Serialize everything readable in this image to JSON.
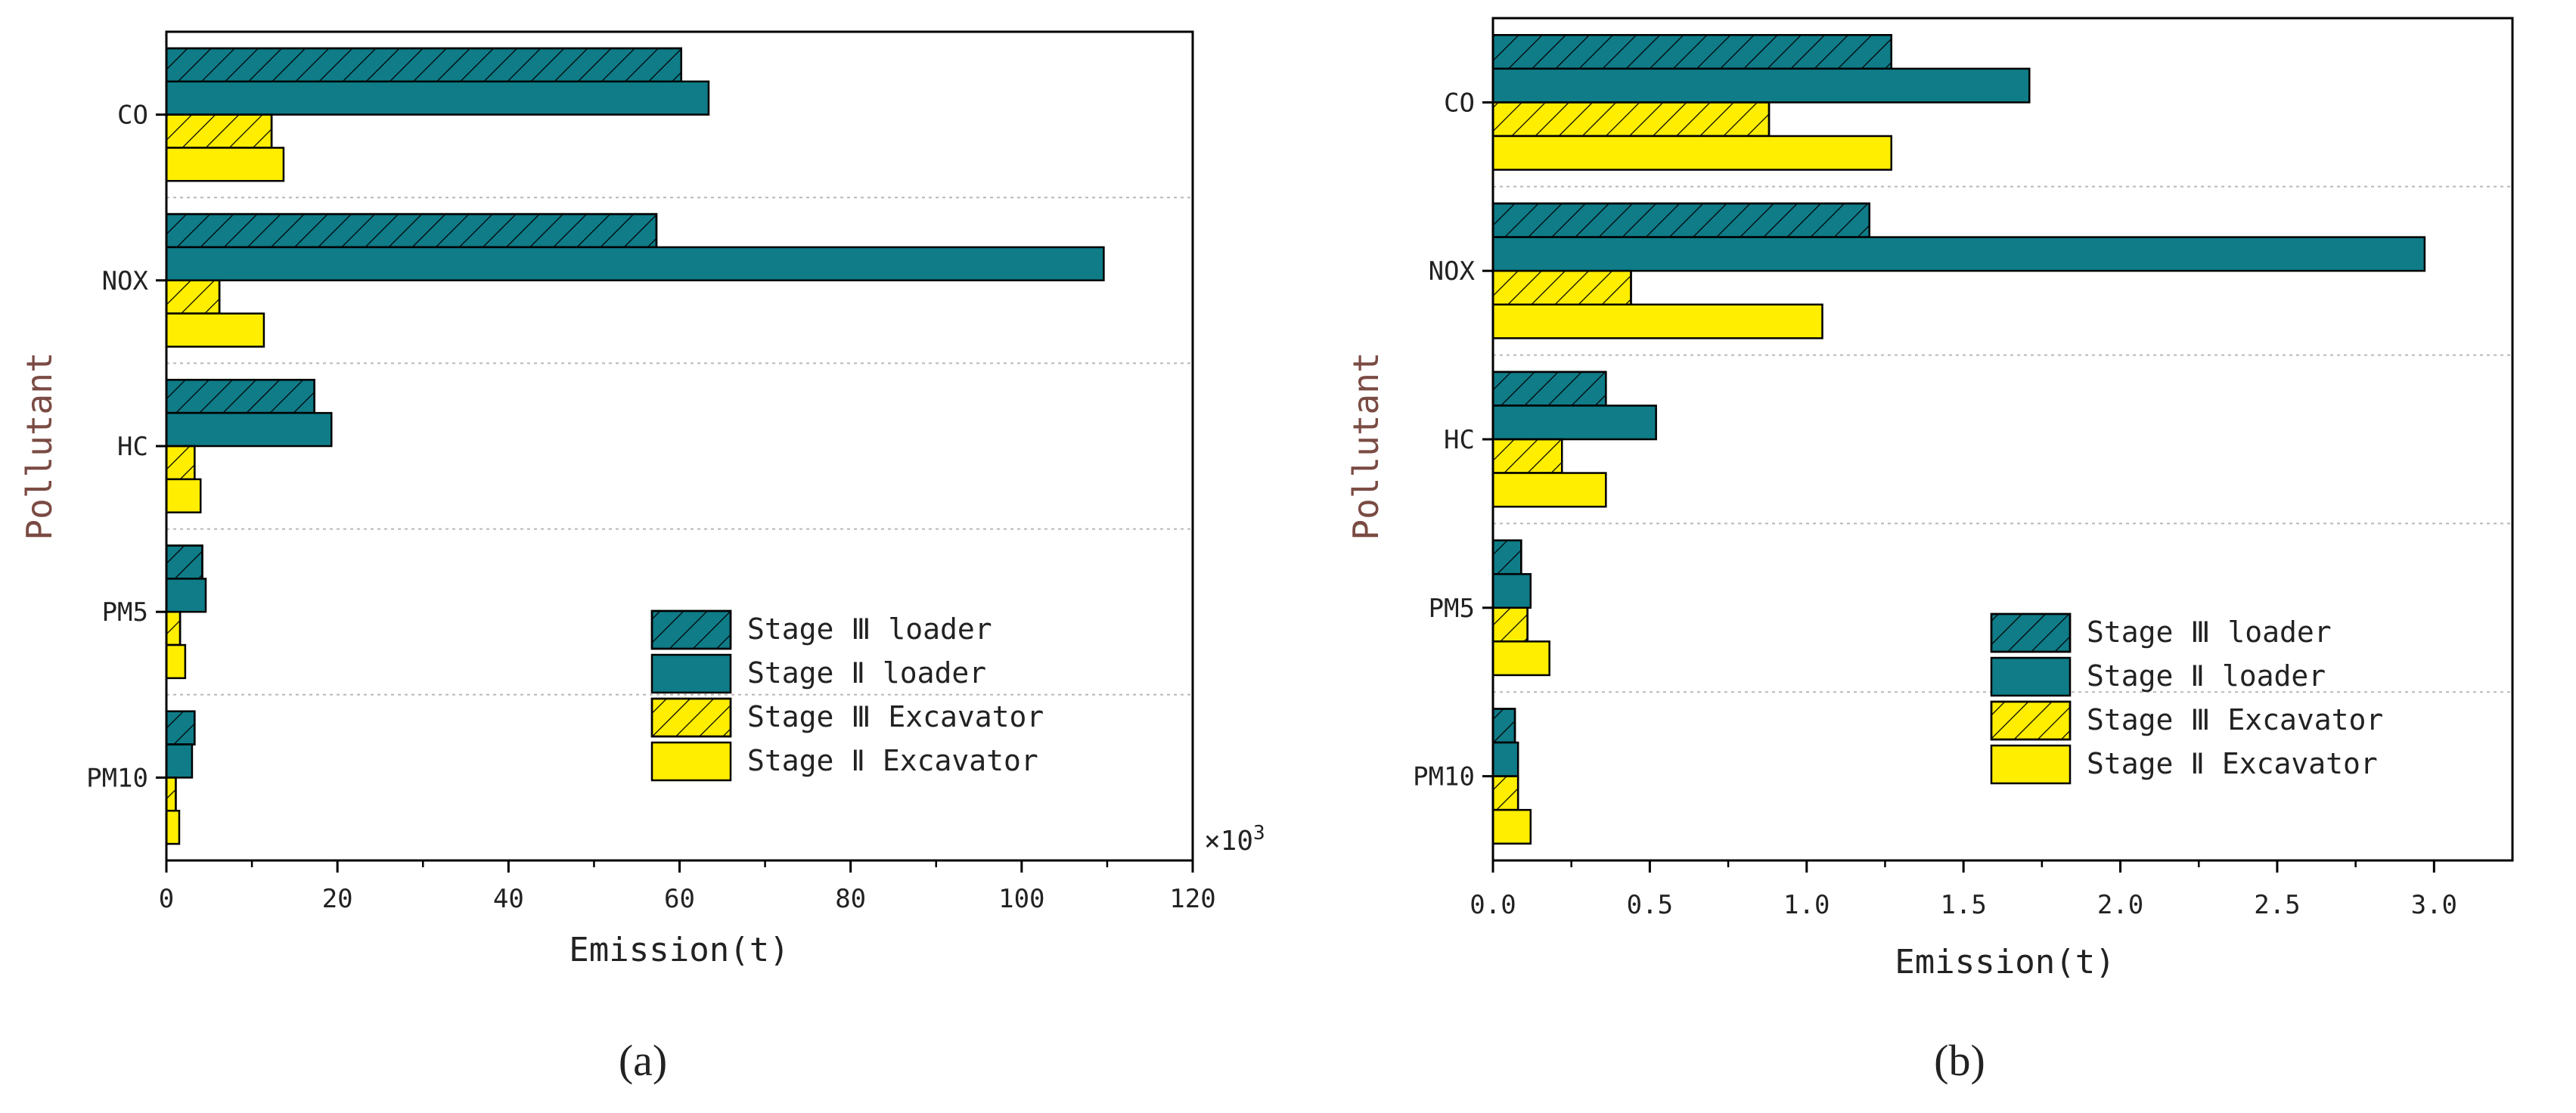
{
  "colors": {
    "teal": "#0f7c88",
    "yellow": "#ffee00",
    "grid": "#b8b8b8",
    "axis": "#000000",
    "ylabel": "#7a4b43"
  },
  "chart_data": [
    {
      "type": "bar",
      "orientation": "horizontal",
      "panel_label": "(a)",
      "xlabel": "Emission(t)",
      "ylabel": "Pollutant",
      "x_multiplier_label": "×10",
      "x_multiplier_exp": "3",
      "xlim": [
        0,
        120
      ],
      "x_ticks": [
        0,
        20,
        40,
        60,
        80,
        100,
        120
      ],
      "categories": [
        "CO",
        "NOX",
        "HC",
        "PM5",
        "PM10"
      ],
      "legend_position": "bottom-right",
      "series": [
        {
          "name": "Stage III loader",
          "display_name": "Stage Ⅲ loader",
          "color": "#0f7c88",
          "hatched": true,
          "values": [
            60.2,
            57.3,
            17.3,
            4.2,
            3.3
          ]
        },
        {
          "name": "Stage II loader",
          "display_name": "Stage Ⅱ loader",
          "color": "#0f7c88",
          "hatched": false,
          "values": [
            63.4,
            109.6,
            19.3,
            4.6,
            3.0
          ]
        },
        {
          "name": "Stage III Excavator",
          "display_name": "Stage Ⅲ Excavator",
          "color": "#ffee00",
          "hatched": true,
          "values": [
            12.3,
            6.2,
            3.3,
            1.6,
            1.1
          ]
        },
        {
          "name": "Stage II Excavator",
          "display_name": "Stage Ⅱ Excavator",
          "color": "#ffee00",
          "hatched": false,
          "values": [
            13.7,
            11.4,
            4.0,
            2.2,
            1.5
          ]
        }
      ]
    },
    {
      "type": "bar",
      "orientation": "horizontal",
      "panel_label": "(b)",
      "xlabel": "Emission(t)",
      "ylabel": "Pollutant",
      "xlim": [
        0,
        3.25
      ],
      "x_ticks": [
        "0.0",
        "0.5",
        "1.0",
        "1.5",
        "2.0",
        "2.5",
        "3.0"
      ],
      "categories": [
        "CO",
        "NOX",
        "HC",
        "PM5",
        "PM10"
      ],
      "legend_position": "bottom-right",
      "series": [
        {
          "name": "Stage III loader",
          "display_name": "Stage Ⅲ loader",
          "color": "#0f7c88",
          "hatched": true,
          "values": [
            1.27,
            1.2,
            0.36,
            0.09,
            0.07
          ]
        },
        {
          "name": "Stage II loader",
          "display_name": "Stage Ⅱ loader",
          "color": "#0f7c88",
          "hatched": false,
          "values": [
            1.71,
            2.97,
            0.52,
            0.12,
            0.08
          ]
        },
        {
          "name": "Stage III Excavator",
          "display_name": "Stage Ⅲ Excavator",
          "color": "#ffee00",
          "hatched": true,
          "values": [
            0.88,
            0.44,
            0.22,
            0.11,
            0.08
          ]
        },
        {
          "name": "Stage II Excavator",
          "display_name": "Stage Ⅱ Excavator",
          "color": "#ffee00",
          "hatched": false,
          "values": [
            1.27,
            1.05,
            0.36,
            0.18,
            0.12
          ]
        }
      ]
    }
  ]
}
